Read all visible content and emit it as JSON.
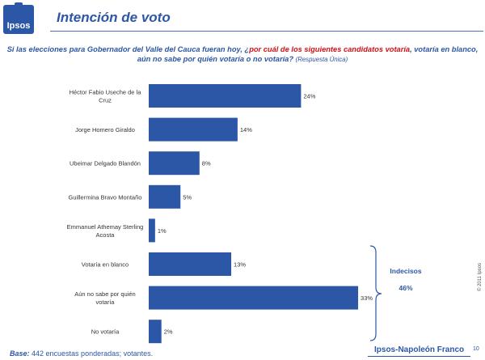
{
  "header": {
    "logo": "Ipsos",
    "title": "Intención de voto"
  },
  "question": {
    "part1": "Si las elecciones para Gobernador del Valle del Cauca fueran hoy, ¿",
    "highlight": "por cuál de los siguientes candidatos votaría",
    "part2": ", votaría en blanco, aún no sabe por quién votaría o no votaría?",
    "note": "(Respuesta Única)"
  },
  "chart_data": {
    "type": "bar",
    "orientation": "horizontal",
    "categories": [
      "Héctor Fabio Useche de la Cruz",
      "Jorge Homero Giraldo",
      "Ubeimar Delgado Blandón",
      "Guillermina Bravo Montaño",
      "Emmanuel Athemay Sterling Acosta",
      "Votaría en blanco",
      "Aún no sabe por quién votaría",
      "No votaría"
    ],
    "category_lines": [
      [
        "Héctor Fabio Useche de la",
        "Cruz"
      ],
      [
        "Jorge Homero Giraldo"
      ],
      [
        "Ubeimar Delgado Blandón"
      ],
      [
        "Guillermina Bravo Montaño"
      ],
      [
        "Emmanuel Athemay Sterling",
        "Acosta"
      ],
      [
        "Votaría en blanco"
      ],
      [
        "Aún no sabe por quién",
        "votaría"
      ],
      [
        "No votaría"
      ]
    ],
    "values": [
      24,
      14,
      8,
      5,
      1,
      13,
      33,
      2
    ],
    "data_labels": [
      "24%",
      "14%",
      "8%",
      "5%",
      "1%",
      "13%",
      "33%",
      "2%"
    ],
    "bar_color": "#2c57a7",
    "annotation": {
      "label": "Indecisos",
      "value": "46%"
    }
  },
  "footer": {
    "base_label": "Base:",
    "base_text": " 442 encuestas ponderadas; votantes.",
    "brand": "Ipsos-Napoleón Franco",
    "page": "10",
    "copyright": "© 2011 Ipsos"
  }
}
